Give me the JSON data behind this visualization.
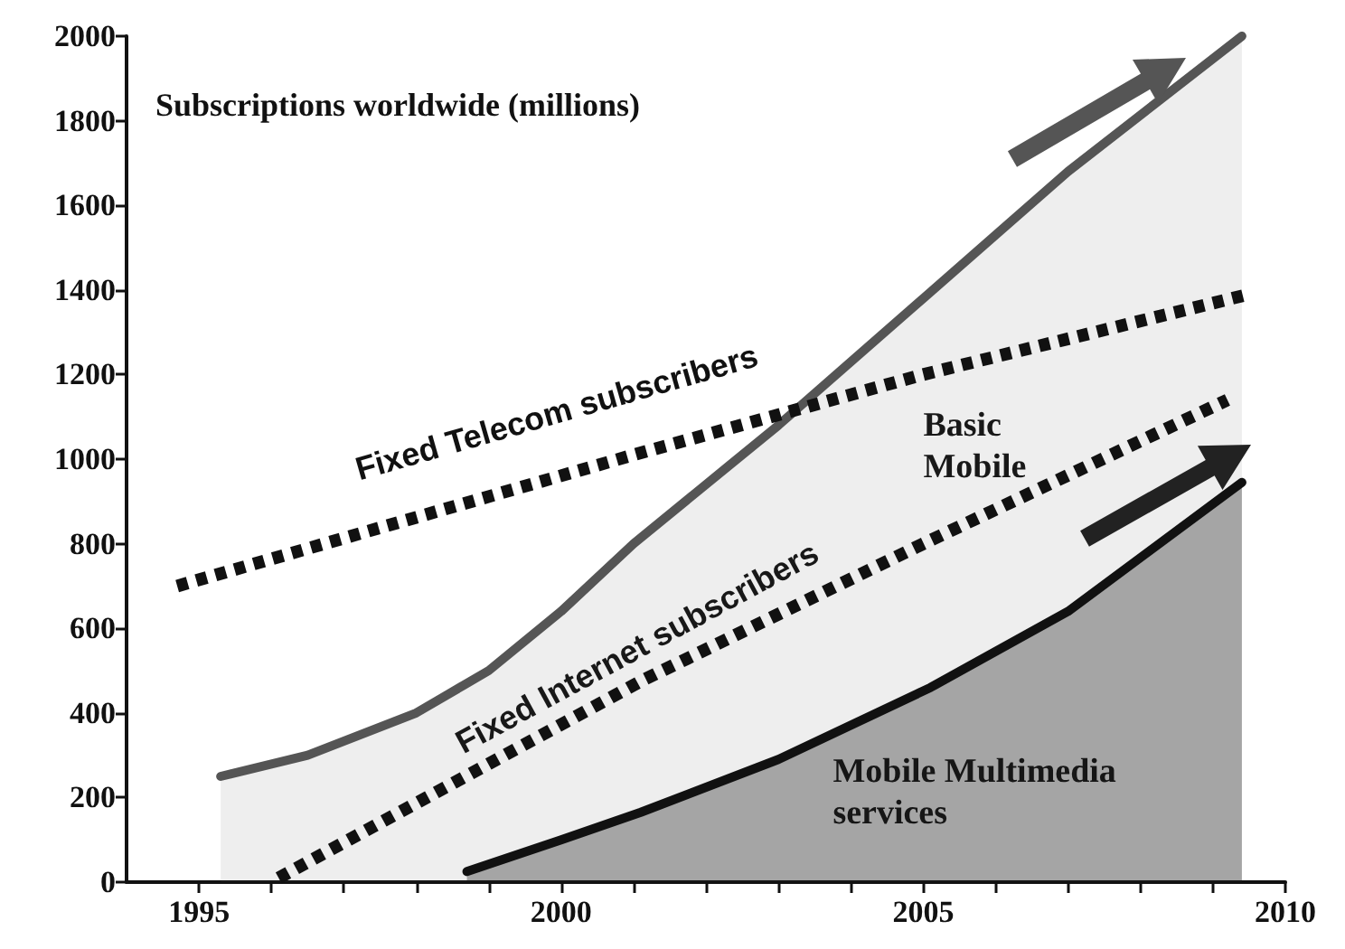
{
  "chart_data": {
    "type": "line",
    "annotations": [
      "Subscriptions worldwide (millions)"
    ],
    "series": [
      {
        "name": "Basic Mobile",
        "type": "area",
        "color": "#555555",
        "line_style": "solid",
        "x": [
          1995.3,
          1996.5,
          1998,
          1999,
          2000,
          2001,
          2003,
          2005,
          2007,
          2009.4
        ],
        "values": [
          250,
          300,
          400,
          500,
          640,
          800,
          1080,
          1380,
          1680,
          2000
        ]
      },
      {
        "name": "Fixed Telecom subscribers",
        "type": "line",
        "color": "#111111",
        "line_style": "dotted",
        "x": [
          1994.7,
          2001,
          2005,
          2009.5
        ],
        "values": [
          700,
          1010,
          1200,
          1390
        ]
      },
      {
        "name": "Fixed Internet subscribers",
        "type": "line",
        "color": "#111111",
        "line_style": "dotted",
        "x": [
          1996.1,
          2001.1,
          2005,
          2009.2
        ],
        "values": [
          10,
          475,
          800,
          1140
        ]
      },
      {
        "name": "Mobile Multimedia services",
        "type": "area",
        "color": "#111111",
        "line_style": "solid",
        "x": [
          1998.7,
          2000,
          2001.1,
          2003,
          2005.1,
          2007,
          2009.4
        ],
        "values": [
          25,
          100,
          165,
          290,
          460,
          640,
          945
        ]
      }
    ],
    "xlim": [
      1994,
      2010
    ],
    "xticks": [
      1995,
      {
        "value": 1996,
        "label": null
      },
      {
        "value": 1997,
        "label": null
      },
      {
        "value": 1998,
        "label": null
      },
      {
        "value": 1999,
        "label": null
      },
      2000,
      {
        "value": 2001,
        "label": null
      },
      {
        "value": 2002,
        "label": null
      },
      {
        "value": 2003,
        "label": null
      },
      {
        "value": 2004,
        "label": null
      },
      2005,
      {
        "value": 2006,
        "label": null
      },
      {
        "value": 2007,
        "label": null
      },
      {
        "value": 2008,
        "label": null
      },
      {
        "value": 2009,
        "label": null
      },
      2010
    ],
    "ylim": [
      0,
      2000
    ],
    "yticks": [
      0,
      200,
      400,
      600,
      800,
      1000,
      1200,
      1400,
      1600,
      1800,
      2000
    ],
    "grid": false,
    "legend": false,
    "marker": "none"
  }
}
